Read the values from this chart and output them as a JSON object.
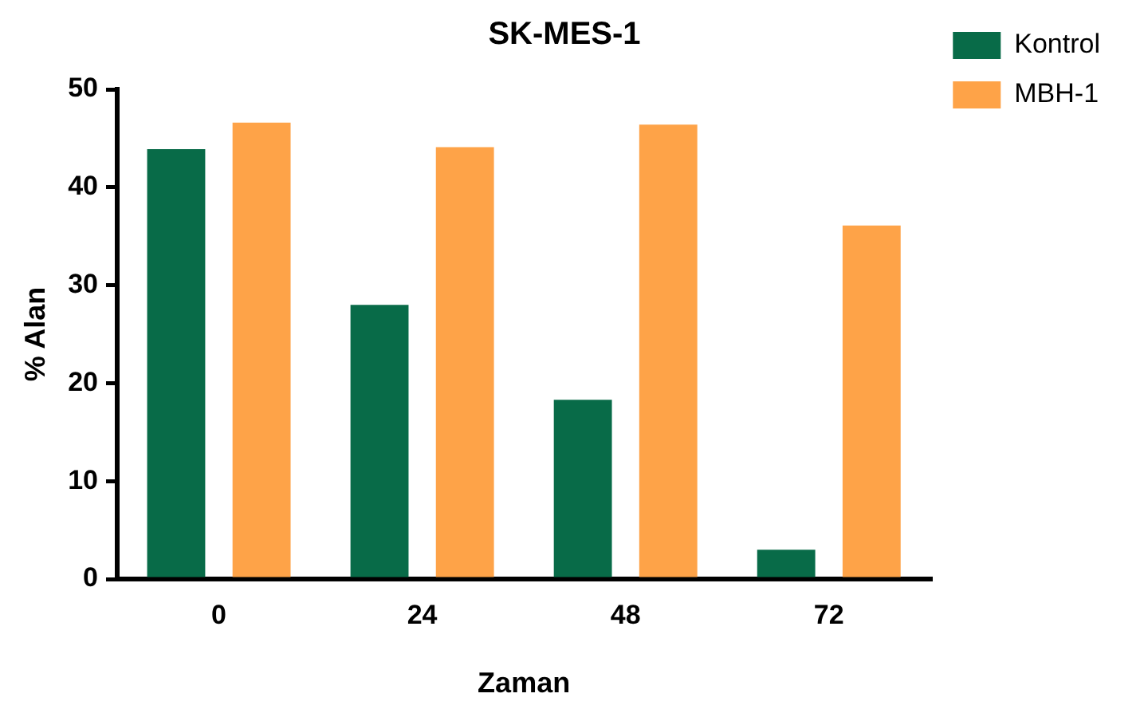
{
  "chart_data": {
    "type": "bar",
    "title": "SK-MES-1",
    "xlabel": "Zaman",
    "ylabel": "% Alan",
    "categories": [
      "0",
      "24",
      "48",
      "72"
    ],
    "series": [
      {
        "name": "Kontrol",
        "color": "#086b48",
        "values": [
          43.9,
          28.0,
          18.3,
          3.0
        ]
      },
      {
        "name": "MBH-1",
        "color": "#fea348",
        "values": [
          46.6,
          44.1,
          46.4,
          36.1
        ]
      }
    ],
    "ylim": [
      0,
      50
    ],
    "yticks": [
      0,
      10,
      20,
      30,
      40,
      50
    ],
    "grid": false,
    "legend": "top right"
  }
}
